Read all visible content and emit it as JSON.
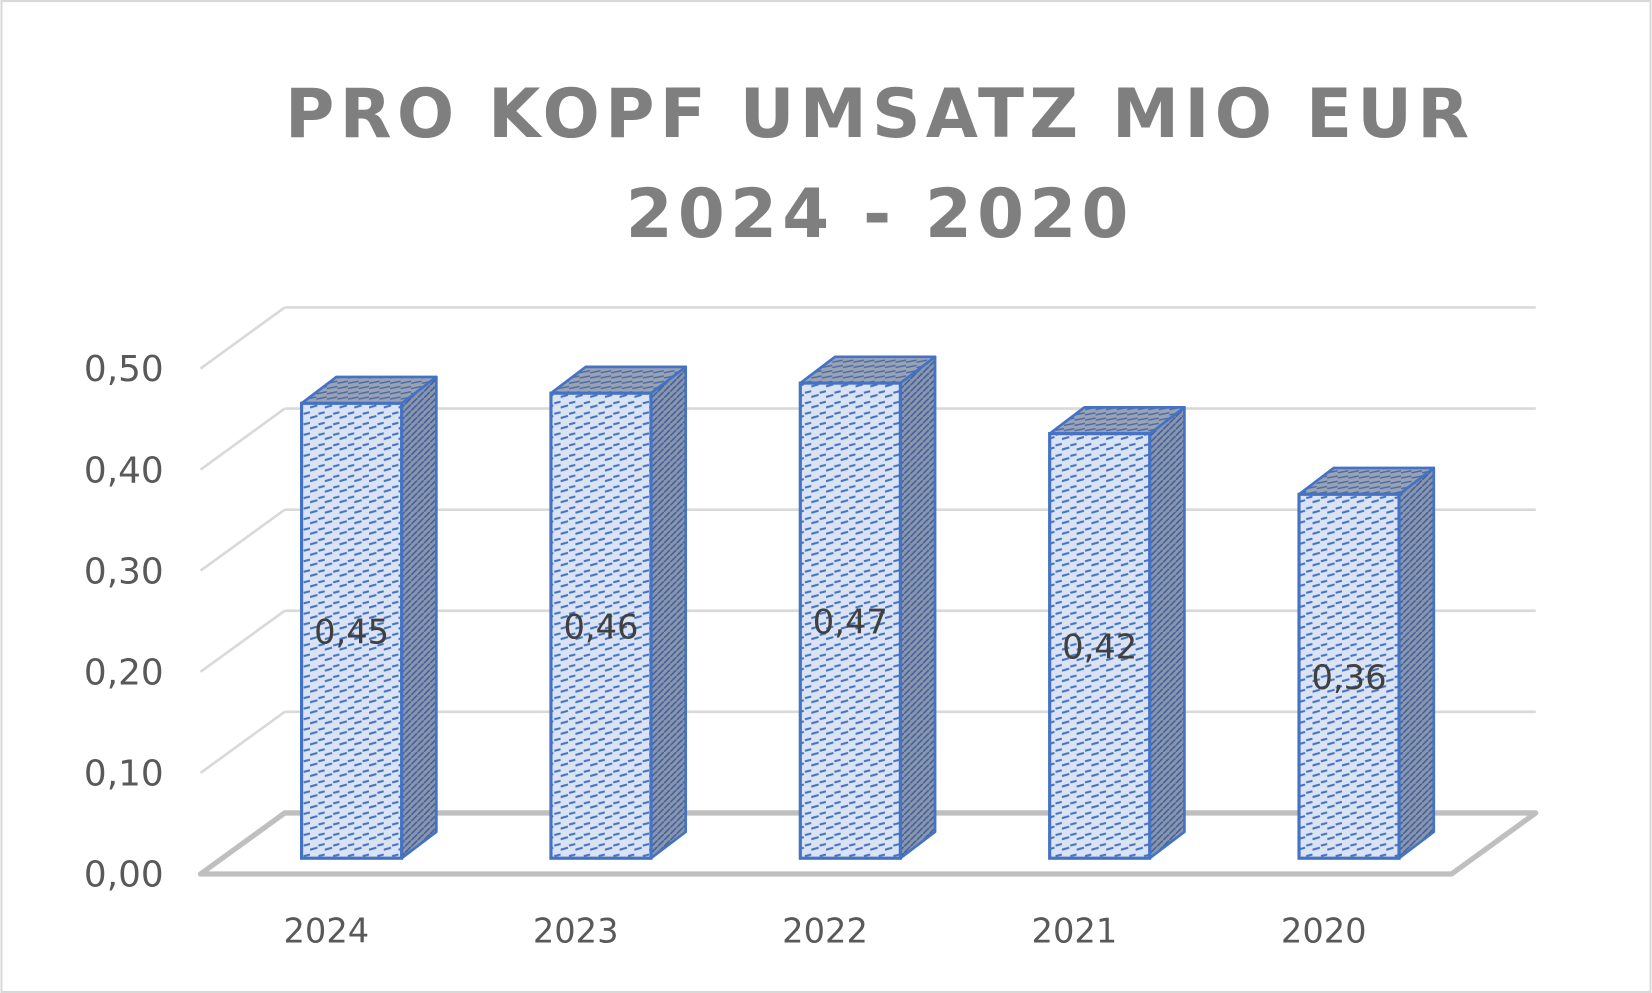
{
  "chart_data": {
    "type": "bar",
    "style": "3d-column",
    "title_lines": [
      "PRO KOPF UMSATZ MIO EUR",
      "2024 - 2020"
    ],
    "categories": [
      "2024",
      "2023",
      "2022",
      "2021",
      "2020"
    ],
    "values": [
      0.45,
      0.46,
      0.47,
      0.42,
      0.36
    ],
    "data_labels": [
      "0,45",
      "0,46",
      "0,47",
      "0,42",
      "0,36"
    ],
    "y_ticks": [
      0,
      0.1,
      0.2,
      0.3,
      0.4,
      0.5
    ],
    "y_tick_labels": [
      "0,00",
      "0,10",
      "0,20",
      "0,30",
      "0,40",
      "0,50"
    ],
    "ylim": [
      0,
      0.5
    ],
    "grid": true,
    "legend": "none",
    "colors": {
      "bar_border": "#4472c4",
      "bar_fill": "#dae3f3",
      "side_fill": "#7f8ea8",
      "title": "#7f7f7f",
      "text": "#595959",
      "grid": "#d9d9d9",
      "floor": "#bfbfbf"
    }
  }
}
